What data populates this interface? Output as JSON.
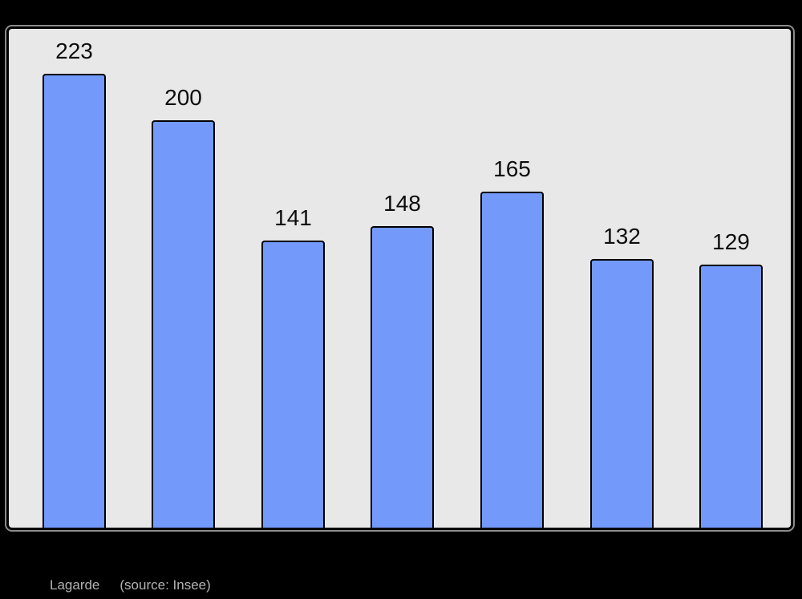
{
  "window": {
    "background_color": "#000000"
  },
  "caption": {
    "name": "Lagarde",
    "source": "(source: Insee)",
    "text_color": "#b3b3b3"
  },
  "chart_data": {
    "type": "bar",
    "title": "",
    "xlabel": "",
    "ylabel": "",
    "categories": [
      "",
      "",
      "",
      "",
      "",
      "",
      ""
    ],
    "values": [
      223,
      200,
      141,
      148,
      165,
      132,
      129
    ],
    "data_labels": [
      "223",
      "200",
      "141",
      "148",
      "165",
      "132",
      "129"
    ],
    "ylim": [
      0,
      245
    ],
    "grid": false,
    "legend": false,
    "axes_visible": false,
    "bar_fill_color": "#7399fa",
    "bar_border_color": "#000000",
    "plot_background_color": "#e8e8e8",
    "plot_border_color": "#000000",
    "label_color": "#0d0d0d"
  }
}
